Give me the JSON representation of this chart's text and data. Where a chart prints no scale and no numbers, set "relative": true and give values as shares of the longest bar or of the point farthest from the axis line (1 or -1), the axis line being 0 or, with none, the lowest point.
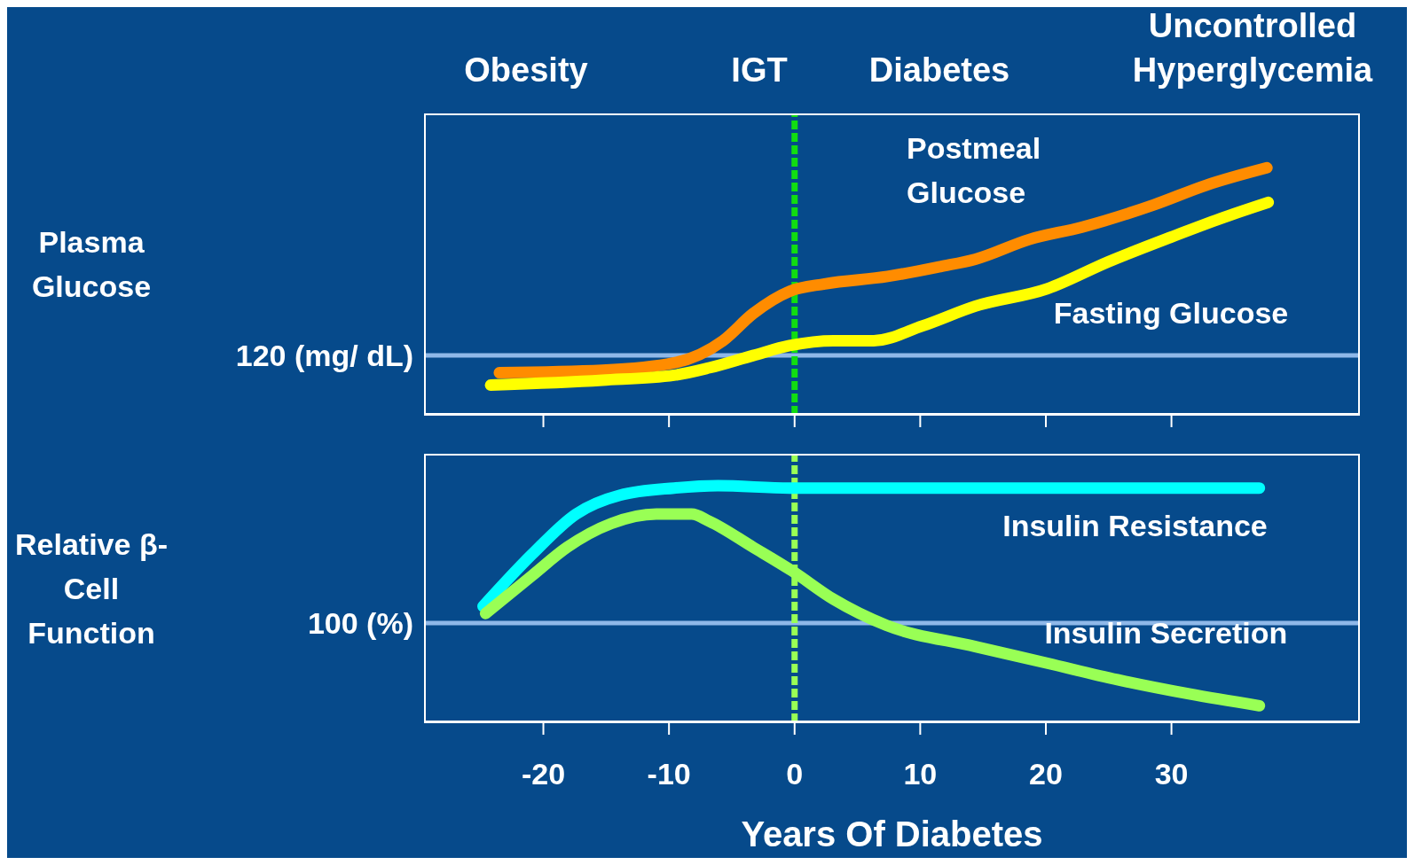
{
  "chart_data": [
    {
      "type": "line",
      "relative": true,
      "ylabel": "Plasma Glucose",
      "xlim": [
        -29.5,
        45
      ],
      "xticks": [
        {
          "value": -20,
          "label": null
        },
        {
          "value": -10,
          "label": null
        },
        {
          "value": 0,
          "label": null
        },
        {
          "value": 10,
          "label": null
        },
        {
          "value": 20,
          "label": null
        },
        {
          "value": 30,
          "label": null
        }
      ],
      "tick_labels": false,
      "marker": "none",
      "line_style": "solid",
      "grid": false,
      "legend": false,
      "annotations": [
        "Obesity",
        "IGT",
        "Diabetes",
        "Uncontrolled Hyperglycemia"
      ],
      "ref_lines": [
        {
          "axis": "y",
          "value": 0.24,
          "label": "120 (mg/ dL)",
          "color": "#8fb8e8"
        },
        {
          "axis": "x",
          "value": 0,
          "color": "#11dd11",
          "line_style": "dashed"
        }
      ],
      "series": [
        {
          "name": "Postmeal Glucose",
          "color": "#ff8c00",
          "x": [
            -23.5,
            -15.3,
            -9.6,
            -5.7,
            -3.3,
            -0.4,
            2.4,
            7.4,
            11.6,
            14.4,
            18.7,
            22.9,
            28.6,
            32.8,
            37.6
          ],
          "values": [
            0.17,
            0.18,
            0.21,
            0.3,
            0.41,
            0.5,
            0.53,
            0.56,
            0.6,
            0.63,
            0.71,
            0.76,
            0.85,
            0.93,
            1
          ]
        },
        {
          "name": "Fasting Glucose",
          "color": "#ffff00",
          "x": [
            -24.2,
            -15.3,
            -9.6,
            -6.8,
            -3.3,
            -0.4,
            3.1,
            6.3,
            10.2,
            14.4,
            20.1,
            25.0,
            30.0,
            34.2,
            37.7
          ],
          "values": [
            0.12,
            0.14,
            0.16,
            0.19,
            0.24,
            0.28,
            0.3,
            0.3,
            0.36,
            0.44,
            0.51,
            0.62,
            0.72,
            0.8,
            0.86
          ]
        }
      ]
    },
    {
      "type": "line",
      "relative": true,
      "ylabel": "Relative β-Cell Function",
      "xlabel": "Years Of Diabetes",
      "xlim": [
        -29.5,
        45
      ],
      "xticks": [
        -20,
        -10,
        0,
        10,
        20,
        30
      ],
      "tick_labels": "x",
      "marker": "none",
      "line_style": "solid",
      "grid": false,
      "legend": false,
      "annotations": [
        "100 (%)"
      ],
      "ref_lines": [
        {
          "axis": "y",
          "value": 0.42,
          "color": "#8fb8e8"
        },
        {
          "axis": "x",
          "value": 0,
          "color": "#99ff55",
          "line_style": "dashed"
        }
      ],
      "series": [
        {
          "name": "Insulin Resistance",
          "color": "#00ffff",
          "x": [
            -24.8,
            -20.9,
            -17.4,
            -13.9,
            -9.6,
            -6.1,
            -0.4,
            7.4,
            21.5,
            37.0
          ],
          "values": [
            0.49,
            0.71,
            0.88,
            0.96,
            0.99,
            1,
            0.99,
            0.99,
            0.99,
            0.99
          ]
        },
        {
          "name": "Insulin Secretion",
          "color": "#99ff55",
          "x": [
            -24.6,
            -20.9,
            -18.1,
            -14.6,
            -11.0,
            -8.2,
            -6.8,
            -3.3,
            -0.2,
            3.1,
            7.3,
            14.4,
            20.1,
            25.7,
            31.4,
            37.0
          ],
          "values": [
            0.46,
            0.62,
            0.74,
            0.84,
            0.88,
            0.88,
            0.85,
            0.74,
            0.64,
            0.52,
            0.41,
            0.32,
            0.25,
            0.18,
            0.12,
            0.07
          ]
        }
      ]
    }
  ]
}
